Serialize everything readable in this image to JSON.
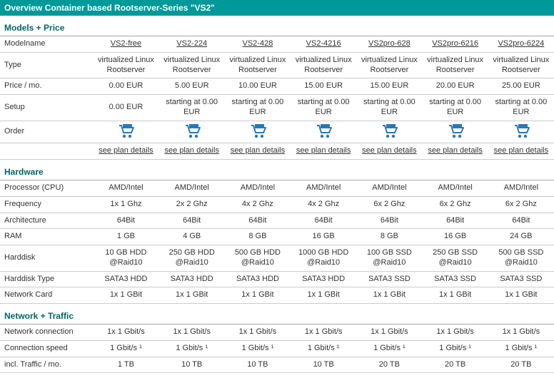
{
  "colors": {
    "header_bg": "#009999",
    "header_text": "#ffffff",
    "section_text": "#006666",
    "border": "#cccccc",
    "cart": "#2878b8",
    "text": "#333333"
  },
  "header": {
    "title": "Overview Container based Rootserver-Series \"VS2\""
  },
  "sections": {
    "models": {
      "title": "Models + Price"
    },
    "hardware": {
      "title": "Hardware"
    },
    "network": {
      "title": "Network + Traffic"
    }
  },
  "row_labels": {
    "modelname": "Modelname",
    "type": "Type",
    "price": "Price / mo.",
    "setup": "Setup",
    "order": "Order",
    "plan_details": "see plan details",
    "cpu": "Processor (CPU)",
    "freq": "Frequency",
    "arch": "Architecture",
    "ram": "RAM",
    "hdd": "Harddisk",
    "hdd_type": "Harddisk Type",
    "nic": "Network Card",
    "net_conn": "Network connection",
    "conn_speed": "Connection speed",
    "traffic": "incl. Traffic / mo."
  },
  "plans": [
    {
      "name": "VS2-free",
      "type": "virtualized Linux Rootserver",
      "price": "0.00 EUR",
      "setup": "0.00 EUR",
      "cpu": "AMD/Intel",
      "freq": "1x 1 Ghz",
      "arch": "64Bit",
      "ram": "1 GB",
      "hdd": "10 GB HDD @Raid10",
      "hdd_type": "SATA3 HDD",
      "nic": "1x 1 GBit",
      "net_conn": "1x 1 Gbit/s",
      "conn_speed": "1 Gbit/s ¹",
      "traffic": "1 TB"
    },
    {
      "name": "VS2-224",
      "type": "virtualized Linux Rootserver",
      "price": "5.00 EUR",
      "setup": "starting at 0.00 EUR",
      "cpu": "AMD/Intel",
      "freq": "2x 2 Ghz",
      "arch": "64Bit",
      "ram": "4 GB",
      "hdd": "250 GB HDD @Raid10",
      "hdd_type": "SATA3 HDD",
      "nic": "1x 1 GBit",
      "net_conn": "1x 1 Gbit/s",
      "conn_speed": "1 Gbit/s ¹",
      "traffic": "10 TB"
    },
    {
      "name": "VS2-428",
      "type": "virtualized Linux Rootserver",
      "price": "10.00 EUR",
      "setup": "starting at 0.00 EUR",
      "cpu": "AMD/Intel",
      "freq": "4x 2 Ghz",
      "arch": "64Bit",
      "ram": "8 GB",
      "hdd": "500 GB HDD @Raid10",
      "hdd_type": "SATA3 HDD",
      "nic": "1x 1 GBit",
      "net_conn": "1x 1 Gbit/s",
      "conn_speed": "1 Gbit/s ¹",
      "traffic": "10 TB"
    },
    {
      "name": "VS2-4216",
      "type": "virtualized Linux Rootserver",
      "price": "15.00 EUR",
      "setup": "starting at 0.00 EUR",
      "cpu": "AMD/Intel",
      "freq": "4x 2 Ghz",
      "arch": "64Bit",
      "ram": "16 GB",
      "hdd": "1000 GB HDD @Raid10",
      "hdd_type": "SATA3 HDD",
      "nic": "1x 1 GBit",
      "net_conn": "1x 1 Gbit/s",
      "conn_speed": "1 Gbit/s ¹",
      "traffic": "10 TB"
    },
    {
      "name": "VS2pro-628",
      "type": "virtualized Linux Rootserver",
      "price": "15.00 EUR",
      "setup": "starting at 0.00 EUR",
      "cpu": "AMD/Intel",
      "freq": "6x 2 Ghz",
      "arch": "64Bit",
      "ram": "8 GB",
      "hdd": "100 GB SSD @Raid10",
      "hdd_type": "SATA3 SSD",
      "nic": "1x 1 GBit",
      "net_conn": "1x 1 Gbit/s",
      "conn_speed": "1 Gbit/s ¹",
      "traffic": "20 TB"
    },
    {
      "name": "VS2pro-6216",
      "type": "virtualized Linux Rootserver",
      "price": "20.00 EUR",
      "setup": "starting at 0.00 EUR",
      "cpu": "AMD/Intel",
      "freq": "6x 2 Ghz",
      "arch": "64Bit",
      "ram": "16 GB",
      "hdd": "250 GB SSD @Raid10",
      "hdd_type": "SATA3 SSD",
      "nic": "1x 1 GBit",
      "net_conn": "1x 1 Gbit/s",
      "conn_speed": "1 Gbit/s ¹",
      "traffic": "20 TB"
    },
    {
      "name": "VS2pro-6224",
      "type": "virtualized Linux Rootserver",
      "price": "25.00 EUR",
      "setup": "starting at 0.00 EUR",
      "cpu": "AMD/Intel",
      "freq": "6x 2 Ghz",
      "arch": "64Bit",
      "ram": "24 GB",
      "hdd": "500 GB SSD @Raid10",
      "hdd_type": "SATA3 SSD",
      "nic": "1x 1 GBit",
      "net_conn": "1x 1 Gbit/s",
      "conn_speed": "1 Gbit/s ¹",
      "traffic": "20 TB"
    }
  ]
}
